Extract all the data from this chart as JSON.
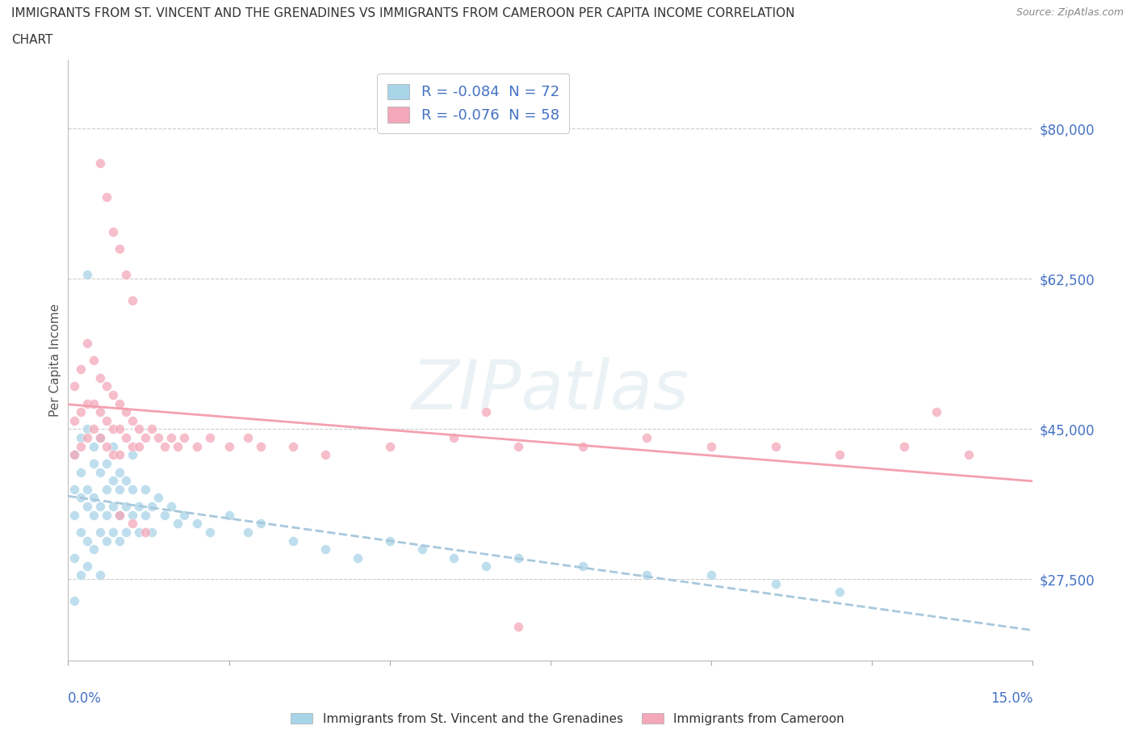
{
  "title_line1": "IMMIGRANTS FROM ST. VINCENT AND THE GRENADINES VS IMMIGRANTS FROM CAMEROON PER CAPITA INCOME CORRELATION",
  "title_line2": "CHART",
  "source": "Source: ZipAtlas.com",
  "ylabel": "Per Capita Income",
  "yticks": [
    27500,
    45000,
    62500,
    80000
  ],
  "ytick_labels": [
    "$27,500",
    "$45,000",
    "$62,500",
    "$80,000"
  ],
  "xlim": [
    0.0,
    0.15
  ],
  "ylim": [
    18000,
    88000
  ],
  "watermark": "ZIPatlas",
  "color_blue": "#A8D4E8",
  "color_pink": "#F4A7B9",
  "sv_x": [
    0.001,
    0.001,
    0.001,
    0.001,
    0.001,
    0.002,
    0.002,
    0.002,
    0.002,
    0.002,
    0.003,
    0.003,
    0.003,
    0.003,
    0.003,
    0.004,
    0.004,
    0.004,
    0.004,
    0.004,
    0.005,
    0.005,
    0.005,
    0.005,
    0.005,
    0.006,
    0.006,
    0.006,
    0.006,
    0.007,
    0.007,
    0.007,
    0.007,
    0.008,
    0.008,
    0.008,
    0.008,
    0.009,
    0.009,
    0.009,
    0.01,
    0.01,
    0.01,
    0.011,
    0.011,
    0.012,
    0.012,
    0.013,
    0.013,
    0.014,
    0.015,
    0.016,
    0.017,
    0.018,
    0.02,
    0.022,
    0.025,
    0.028,
    0.03,
    0.035,
    0.04,
    0.045,
    0.05,
    0.055,
    0.06,
    0.065,
    0.07,
    0.08,
    0.09,
    0.1,
    0.11,
    0.12
  ],
  "sv_y": [
    38000,
    35000,
    42000,
    30000,
    25000,
    37000,
    33000,
    40000,
    28000,
    44000,
    36000,
    32000,
    45000,
    29000,
    38000,
    35000,
    41000,
    31000,
    37000,
    43000,
    36000,
    33000,
    40000,
    28000,
    44000,
    35000,
    38000,
    32000,
    41000,
    36000,
    33000,
    39000,
    43000,
    35000,
    38000,
    32000,
    40000,
    36000,
    33000,
    39000,
    35000,
    38000,
    42000,
    36000,
    33000,
    38000,
    35000,
    36000,
    33000,
    37000,
    35000,
    36000,
    34000,
    35000,
    34000,
    33000,
    35000,
    33000,
    34000,
    32000,
    31000,
    30000,
    32000,
    31000,
    30000,
    29000,
    30000,
    29000,
    28000,
    28000,
    27000,
    26000
  ],
  "sv_outlier_x": [
    0.003
  ],
  "sv_outlier_y": [
    63000
  ],
  "cam_x": [
    0.001,
    0.001,
    0.001,
    0.002,
    0.002,
    0.002,
    0.003,
    0.003,
    0.003,
    0.004,
    0.004,
    0.004,
    0.005,
    0.005,
    0.005,
    0.006,
    0.006,
    0.006,
    0.007,
    0.007,
    0.007,
    0.008,
    0.008,
    0.008,
    0.009,
    0.009,
    0.01,
    0.01,
    0.011,
    0.011,
    0.012,
    0.013,
    0.014,
    0.015,
    0.016,
    0.017,
    0.018,
    0.02,
    0.022,
    0.025,
    0.028,
    0.03,
    0.035,
    0.04,
    0.05,
    0.06,
    0.07,
    0.08,
    0.09,
    0.1,
    0.11,
    0.12,
    0.13,
    0.14,
    0.008,
    0.01,
    0.012,
    0.07
  ],
  "cam_y": [
    50000,
    46000,
    42000,
    52000,
    47000,
    43000,
    55000,
    48000,
    44000,
    53000,
    48000,
    45000,
    51000,
    47000,
    44000,
    50000,
    46000,
    43000,
    49000,
    45000,
    42000,
    48000,
    45000,
    42000,
    47000,
    44000,
    46000,
    43000,
    45000,
    43000,
    44000,
    45000,
    44000,
    43000,
    44000,
    43000,
    44000,
    43000,
    44000,
    43000,
    44000,
    43000,
    43000,
    42000,
    43000,
    44000,
    43000,
    43000,
    44000,
    43000,
    43000,
    42000,
    43000,
    42000,
    35000,
    34000,
    33000,
    22000
  ],
  "cam_outlier_x": [
    0.005,
    0.006,
    0.007,
    0.008,
    0.009,
    0.01,
    0.065,
    0.135
  ],
  "cam_outlier_y": [
    76000,
    72000,
    68000,
    66000,
    63000,
    60000,
    47000,
    47000
  ]
}
